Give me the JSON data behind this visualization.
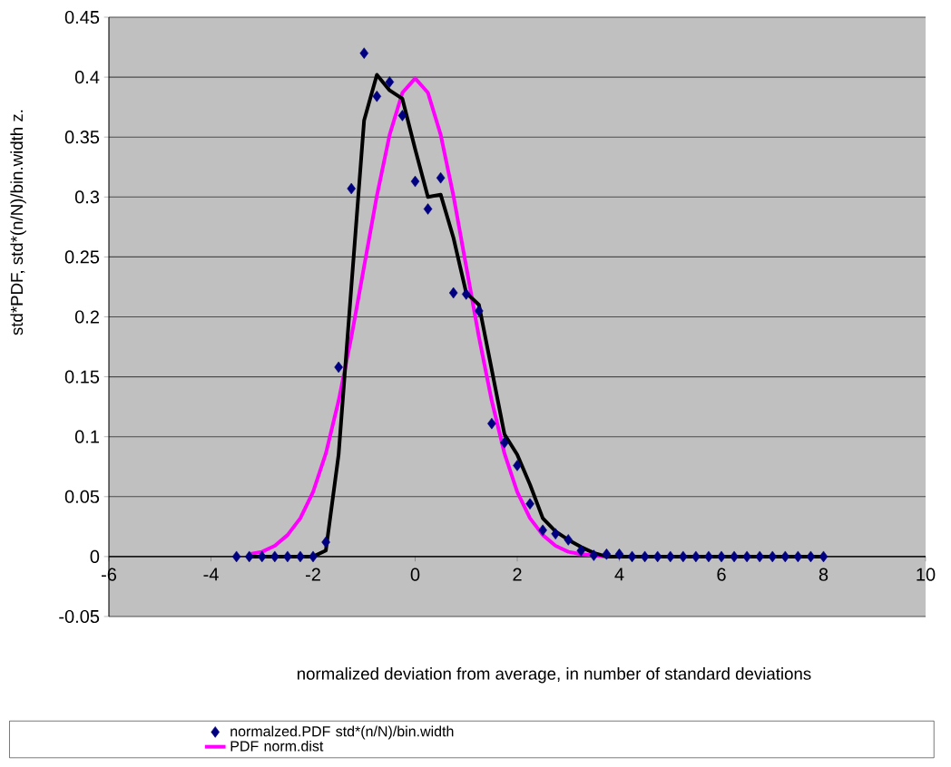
{
  "chart_data": {
    "type": "scatter",
    "xlabel": "normalized deviation from average, in number of standard deviations",
    "ylabel": "std*PDF, std*(n/N)/bin.width z.",
    "xlim": [
      -6,
      10
    ],
    "xticks": [
      -6,
      -4,
      -2,
      0,
      2,
      4,
      6,
      8,
      10
    ],
    "ylim": [
      -0.05,
      0.45
    ],
    "yticks": [
      -0.05,
      0,
      0.05,
      0.1,
      0.15,
      0.2,
      0.25,
      0.3,
      0.35,
      0.4,
      0.45
    ],
    "grid": "y",
    "legend": "bottom",
    "series": [
      {
        "name": "normalzed.PDF std*(n/N)/bin.width",
        "marker": "diamond",
        "color": "#000080",
        "x": [
          -3.5,
          -3.25,
          -3,
          -2.75,
          -2.5,
          -2.25,
          -2,
          -1.75,
          -1.5,
          -1.25,
          -1,
          -0.75,
          -0.5,
          -0.25,
          0,
          0.25,
          0.5,
          0.75,
          1,
          1.25,
          1.5,
          1.75,
          2,
          2.25,
          2.5,
          2.75,
          3,
          3.25,
          3.5,
          3.75,
          4,
          4.25,
          4.5,
          4.75,
          5,
          5.25,
          5.5,
          5.75,
          6,
          6.25,
          6.5,
          6.75,
          7,
          7.25,
          7.5,
          7.75,
          8
        ],
        "values": [
          0,
          0,
          0,
          0,
          0,
          0,
          0,
          0.012,
          0.158,
          0.307,
          0.42,
          0.384,
          0.396,
          0.368,
          0.313,
          0.29,
          0.316,
          0.22,
          0.219,
          0.205,
          0.111,
          0.095,
          0.076,
          0.044,
          0.022,
          0.019,
          0.014,
          0.005,
          0.001,
          0.002,
          0.002,
          0,
          0,
          0,
          0,
          0,
          0,
          0,
          0,
          0,
          0,
          0,
          0,
          0,
          0,
          0,
          0
        ]
      },
      {
        "name": "PDF norm.dist",
        "type": "line",
        "marker": "none",
        "color": "#ff00ff",
        "x": [
          -3.25,
          -3,
          -2.75,
          -2.5,
          -2.25,
          -2,
          -1.75,
          -1.5,
          -1.25,
          -1,
          -0.75,
          -0.5,
          -0.25,
          0,
          0.25,
          0.5,
          0.75,
          1,
          1.25,
          1.5,
          1.75,
          2,
          2.25,
          2.5,
          2.75,
          3,
          3.25,
          3.5,
          3.75,
          4
        ],
        "values": [
          0.002,
          0.004,
          0.009,
          0.018,
          0.032,
          0.054,
          0.086,
          0.13,
          0.183,
          0.242,
          0.301,
          0.352,
          0.387,
          0.399,
          0.387,
          0.352,
          0.301,
          0.242,
          0.183,
          0.13,
          0.086,
          0.054,
          0.032,
          0.018,
          0.009,
          0.004,
          0.002,
          0.001,
          0,
          0
        ]
      },
      {
        "type": "line",
        "marker": "none",
        "color": "#000000",
        "x": [
          -3.25,
          -3,
          -2.75,
          -2.5,
          -2.25,
          -2,
          -1.75,
          -1.5,
          -1.25,
          -1,
          -0.75,
          -0.5,
          -0.25,
          0,
          0.25,
          0.5,
          0.75,
          1,
          1.25,
          1.5,
          1.75,
          2,
          2.25,
          2.5,
          2.75,
          3,
          3.25,
          3.5,
          3.75,
          4,
          4.25,
          4.5,
          4.75,
          5,
          5.25,
          5.5,
          5.75,
          6,
          6.25,
          6.5,
          6.75,
          7,
          7.25,
          7.5,
          7.75,
          8
        ],
        "values": [
          0,
          0,
          0,
          0,
          0,
          0,
          0.005,
          0.085,
          0.225,
          0.364,
          0.402,
          0.389,
          0.382,
          0.34,
          0.3,
          0.302,
          0.266,
          0.22,
          0.21,
          0.156,
          0.102,
          0.085,
          0.06,
          0.032,
          0.021,
          0.014,
          0.008,
          0.003,
          0,
          0,
          0,
          0,
          0,
          0,
          0,
          0,
          0,
          0,
          0,
          0,
          0,
          0,
          0,
          0,
          0,
          0
        ]
      }
    ]
  }
}
